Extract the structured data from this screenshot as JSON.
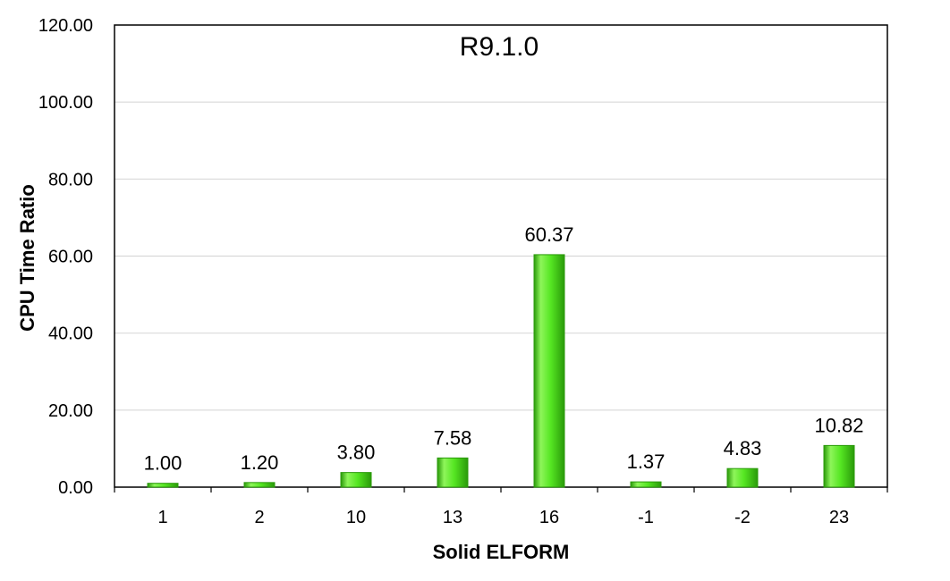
{
  "chart_data": {
    "type": "bar",
    "title": "R9.1.0",
    "xlabel": "Solid ELFORM",
    "ylabel": "CPU Time Ratio",
    "categories": [
      "1",
      "2",
      "10",
      "13",
      "16",
      "-1",
      "-2",
      "23"
    ],
    "values": [
      1.0,
      1.2,
      3.8,
      7.58,
      60.37,
      1.37,
      4.83,
      10.82
    ],
    "data_labels": [
      "1.00",
      "1.20",
      "3.80",
      "7.58",
      "60.37",
      "1.37",
      "4.83",
      "10.82"
    ],
    "ylim": [
      0,
      120
    ],
    "yticks": [
      "0.00",
      "20.00",
      "40.00",
      "60.00",
      "80.00",
      "100.00",
      "120.00"
    ],
    "grid": true,
    "legend": "none",
    "colors": {
      "bar_light": "#8ef55a",
      "bar_mid": "#55e622",
      "bar_dark": "#2a9a0a",
      "grid": "#d9d9d9",
      "axis": "#000000"
    }
  }
}
